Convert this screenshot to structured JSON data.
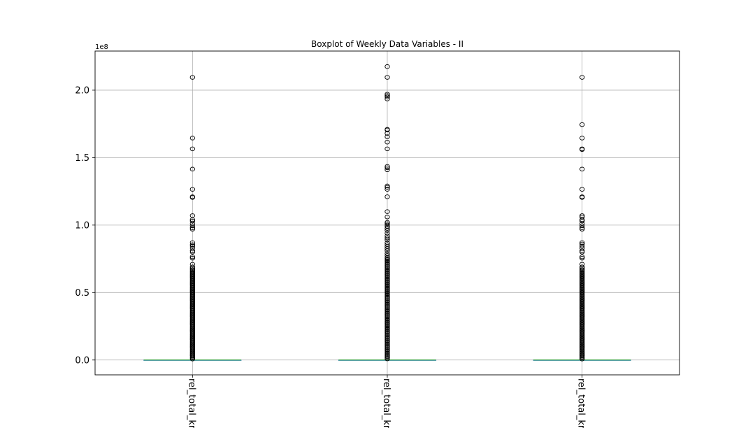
{
  "chart_data": {
    "type": "box",
    "title": "Boxplot of Weekly Data Variables - II",
    "xlabel": "",
    "ylabel": "",
    "y_offset_label": "1e8",
    "y_scale_factor": 100000000,
    "ylim": [
      -11000000,
      229000000
    ],
    "yticks": [
      0.0,
      0.5,
      1.0,
      1.5,
      2.0
    ],
    "ytick_labels": [
      "0.0",
      "0.5",
      "1.0",
      "1.5",
      "2.0"
    ],
    "grid": true,
    "categories": [
      "rel_total_kr",
      "rel_total_kr",
      "rel_total_kr"
    ],
    "boxes": [
      {
        "name": "rel_total_kr",
        "median": 0,
        "q1": 0,
        "q3": 0,
        "whisker_low": 0,
        "whisker_high": 0,
        "outliers_dense_range": [
          0,
          67000000
        ],
        "outliers": [
          209500000,
          164500000,
          156500000,
          141500000,
          126500000,
          121000000,
          120500000,
          107000000,
          104000000,
          103000000,
          101000000,
          99500000,
          98000000,
          97000000,
          87000000,
          85500000,
          84500000,
          83000000,
          81000000,
          80000000,
          76500000,
          75500000,
          71000000,
          69000000,
          68000000
        ]
      },
      {
        "name": "rel_total_kr",
        "median": 0,
        "q1": 0,
        "q3": 0,
        "whisker_low": 0,
        "whisker_high": 0,
        "outliers_dense_range": [
          0,
          76000000
        ],
        "outliers": [
          217500000,
          209500000,
          197000000,
          196000000,
          195000000,
          193500000,
          171000000,
          170500000,
          168000000,
          165500000,
          161500000,
          156500000,
          143500000,
          142500000,
          141000000,
          129000000,
          128000000,
          126500000,
          121000000,
          110000000,
          106000000,
          102000000,
          101000000,
          100000000,
          99000000,
          97500000,
          96000000,
          94000000,
          92000000,
          90500000,
          89000000,
          87000000,
          85500000,
          84000000,
          82500000,
          81000000,
          79000000,
          77500000
        ]
      },
      {
        "name": "rel_total_kr",
        "median": 0,
        "q1": 0,
        "q3": 0,
        "whisker_low": 0,
        "whisker_high": 0,
        "outliers_dense_range": [
          0,
          67000000
        ],
        "outliers": [
          209500000,
          174500000,
          164500000,
          156500000,
          156000000,
          141500000,
          126500000,
          121000000,
          120500000,
          107000000,
          106000000,
          104000000,
          103000000,
          101000000,
          99500000,
          98000000,
          97000000,
          87000000,
          86000000,
          84500000,
          83000000,
          81000000,
          80000000,
          76500000,
          75500000,
          71000000,
          69000000,
          68000000
        ]
      }
    ],
    "colors": {
      "median": "#2ca02c",
      "box": "#1f77b4",
      "grid": "#b0b0b0",
      "axis": "#000000",
      "flier": "#000000"
    }
  }
}
